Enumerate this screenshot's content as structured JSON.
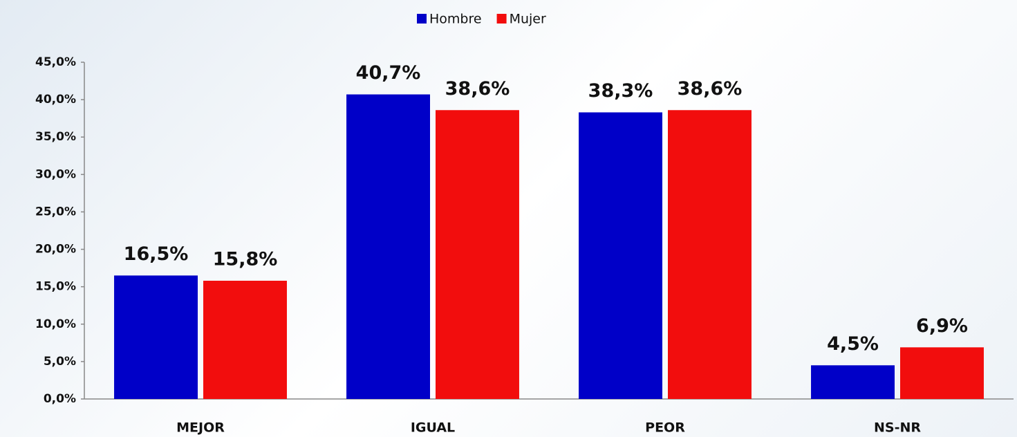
{
  "chart_data": {
    "type": "bar",
    "categories": [
      "MEJOR",
      "IGUAL",
      "PEOR",
      "NS-NR"
    ],
    "series": [
      {
        "name": "Hombre",
        "color": "#0000c8",
        "values": [
          16.5,
          40.7,
          38.3,
          4.5
        ],
        "value_labels": [
          "16,5%",
          "40,7%",
          "38,3%",
          "4,5%"
        ]
      },
      {
        "name": "Mujer",
        "color": "#f20d0d",
        "values": [
          15.8,
          38.6,
          38.6,
          6.9
        ],
        "value_labels": [
          "15,8%",
          "38,6%",
          "38,6%",
          "6,9%"
        ]
      }
    ],
    "ylim": [
      0,
      45
    ],
    "yticks": [
      {
        "value": 0,
        "label": "0,0%"
      },
      {
        "value": 5,
        "label": "5,0%"
      },
      {
        "value": 10,
        "label": "10,0%"
      },
      {
        "value": 15,
        "label": "15,0%"
      },
      {
        "value": 20,
        "label": "20,0%"
      },
      {
        "value": 25,
        "label": "25,0%"
      },
      {
        "value": 30,
        "label": "30,0%"
      },
      {
        "value": 35,
        "label": "35,0%"
      },
      {
        "value": 40,
        "label": "40,0%"
      },
      {
        "value": 45,
        "label": "45,0%"
      }
    ],
    "legend": "top"
  }
}
